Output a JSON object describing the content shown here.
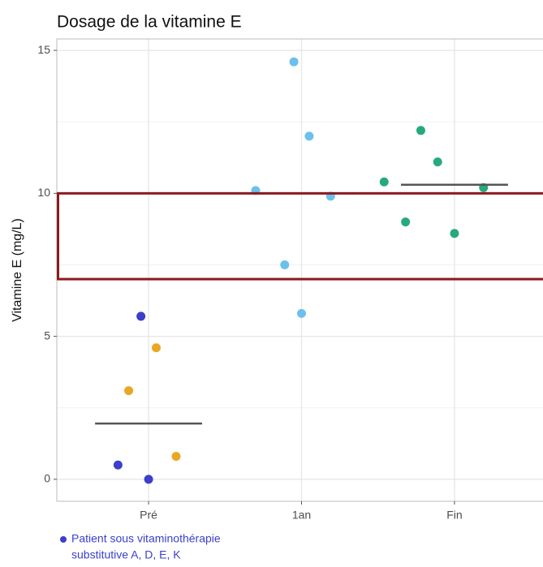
{
  "chart_data": {
    "type": "strip",
    "title": "Dosage de la vitamine E",
    "y_label": "Vitamine E (mg/L)",
    "xlim": [
      0.4,
      3.6
    ],
    "xticks": [
      {
        "value": 1,
        "label": "Pré"
      },
      {
        "value": 2,
        "label": "1an"
      },
      {
        "value": 3,
        "label": "Fin"
      }
    ],
    "ylim": [
      -0.77,
      15.4
    ],
    "yticks": [
      0,
      5,
      10,
      15
    ],
    "minor_yticks": [
      2.5,
      7.5,
      12.5
    ],
    "grid": true,
    "series": [
      {
        "color": "#e9a824",
        "x": [
          1.05,
          0.87,
          1.18
        ],
        "values": [
          4.6,
          3.1,
          0.8
        ]
      },
      {
        "color": "#3b3fcb",
        "x": [
          0.95,
          0.8,
          1.0
        ],
        "values": [
          5.7,
          0.5,
          0
        ]
      },
      {
        "color": "#6cc1ec",
        "x": [
          1.95,
          2.05,
          1.7,
          2.19,
          1.89,
          2.0
        ],
        "values": [
          14.6,
          12.0,
          10.1,
          9.9,
          7.5,
          5.8
        ]
      },
      {
        "color": "#27a97f",
        "x": [
          2.78,
          2.89,
          2.54,
          3.19,
          2.68,
          3.0
        ],
        "values": [
          12.2,
          11.1,
          10.4,
          10.2,
          9.0,
          8.6
        ]
      }
    ],
    "medians": {
      "x": [
        1,
        2,
        3
      ],
      "values": [
        1.95,
        10.0,
        10.3
      ],
      "color": "#555555"
    },
    "reference_band": {
      "values": [
        7,
        10
      ],
      "color": "#8b1a1f"
    },
    "annotation": {
      "lines": [
        "Patient sous vitaminothérapie",
        "substitutive A, D, E, K"
      ],
      "color": "#3b3fcb"
    }
  }
}
